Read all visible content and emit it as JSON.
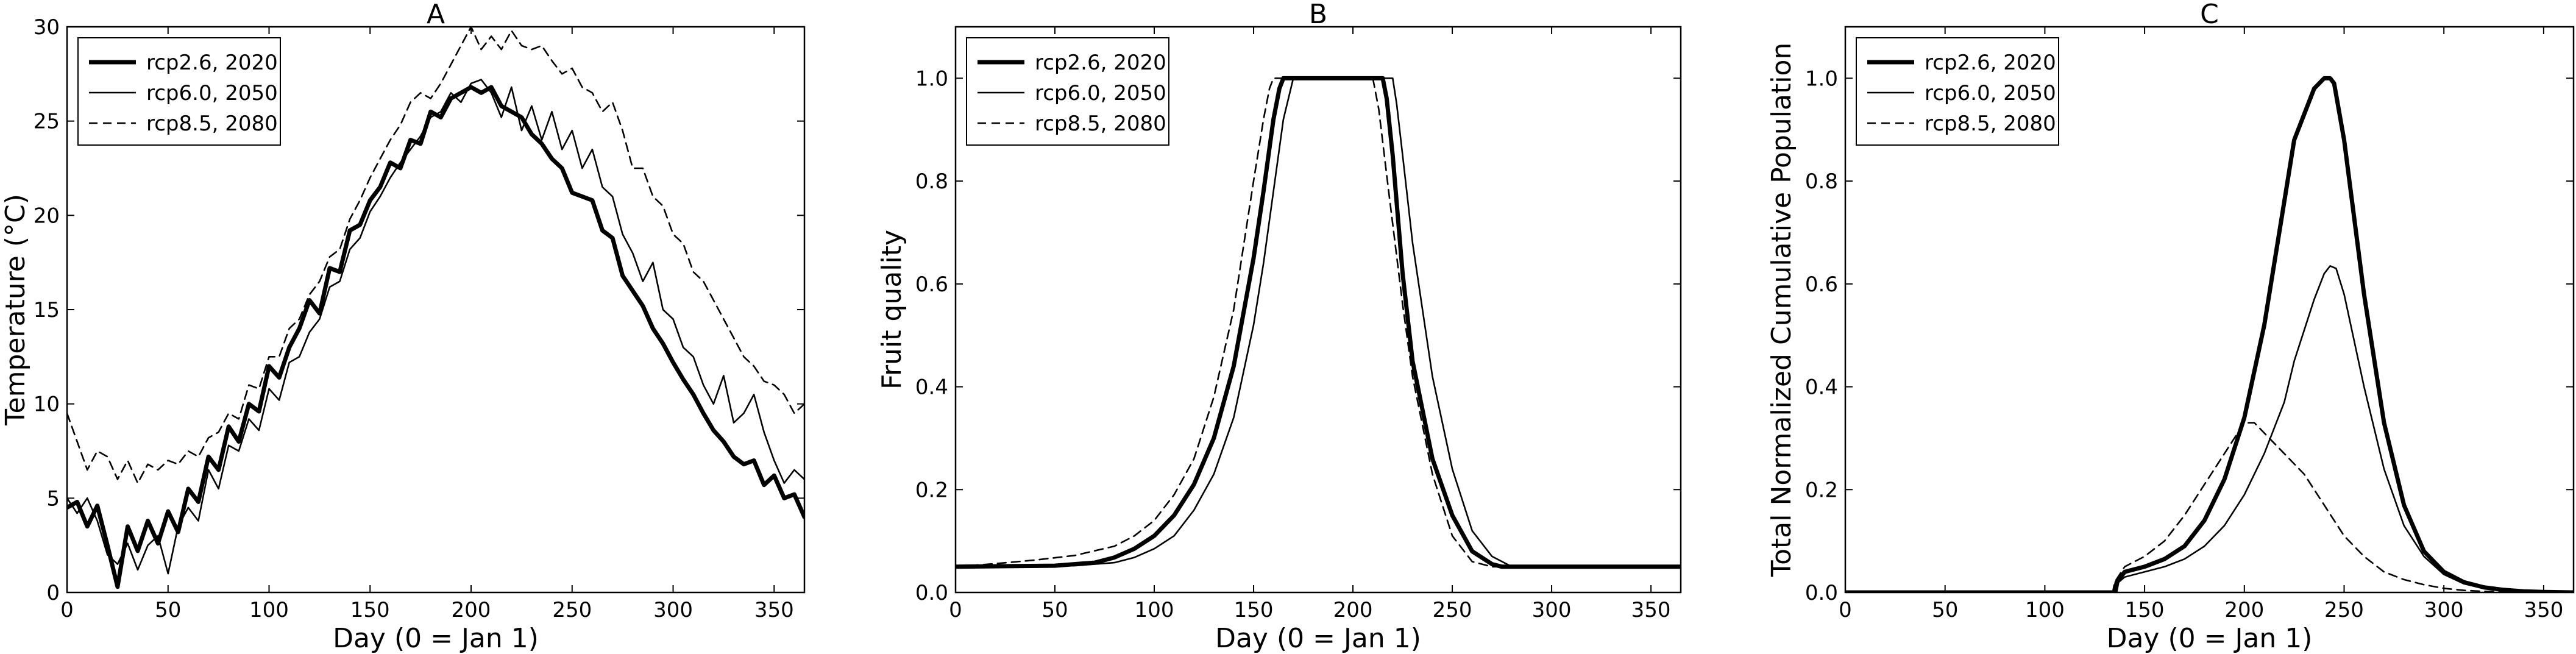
{
  "legend_entries": [
    "rcp2.6, 2020",
    "rcp6.0, 2050",
    "rcp8.5, 2080"
  ],
  "chart_data": [
    {
      "type": "line",
      "title": "A",
      "xlabel": "Day (0 = Jan 1)",
      "ylabel": "Temperature (°C)",
      "xlim": [
        0,
        365
      ],
      "ylim": [
        0,
        30
      ],
      "xticks": [
        0,
        50,
        100,
        150,
        200,
        250,
        300,
        350
      ],
      "yticks": [
        0,
        5,
        10,
        15,
        20,
        25,
        30
      ],
      "grid": false,
      "legend_position": "top-left",
      "series": [
        {
          "name": "rcp2.6, 2020",
          "style": "thick-solid",
          "x": [
            0,
            5,
            10,
            15,
            20,
            25,
            30,
            35,
            40,
            45,
            50,
            55,
            60,
            65,
            70,
            75,
            80,
            85,
            90,
            95,
            100,
            105,
            110,
            115,
            120,
            125,
            130,
            135,
            140,
            145,
            150,
            155,
            160,
            165,
            170,
            175,
            180,
            185,
            190,
            195,
            200,
            205,
            210,
            215,
            220,
            225,
            230,
            235,
            240,
            245,
            250,
            255,
            260,
            265,
            270,
            275,
            280,
            285,
            290,
            295,
            300,
            305,
            310,
            315,
            320,
            325,
            330,
            335,
            340,
            345,
            350,
            355,
            360,
            365
          ],
          "y": [
            4.5,
            4.8,
            3.5,
            4.6,
            2.5,
            0.3,
            3.5,
            2.2,
            3.8,
            2.6,
            4.3,
            3.2,
            5.5,
            4.8,
            7.2,
            6.5,
            8.8,
            8.0,
            10.0,
            9.6,
            12.0,
            11.4,
            13.0,
            14.0,
            15.5,
            14.8,
            17.2,
            17.0,
            19.2,
            19.5,
            20.8,
            21.5,
            22.8,
            22.5,
            24.0,
            23.8,
            25.5,
            25.2,
            26.2,
            26.5,
            26.8,
            26.5,
            26.8,
            25.8,
            25.5,
            25.2,
            24.3,
            23.8,
            23.0,
            22.5,
            21.2,
            21.0,
            20.8,
            19.2,
            18.8,
            16.8,
            16.0,
            15.2,
            14.0,
            13.2,
            12.2,
            11.3,
            10.5,
            9.5,
            8.6,
            8.0,
            7.2,
            6.8,
            7.0,
            5.7,
            6.2,
            5.0,
            5.2,
            4.0
          ]
        },
        {
          "name": "rcp6.0, 2050",
          "style": "thin-solid",
          "x": [
            0,
            5,
            10,
            15,
            20,
            25,
            30,
            35,
            40,
            45,
            50,
            55,
            60,
            65,
            70,
            75,
            80,
            85,
            90,
            95,
            100,
            105,
            110,
            115,
            120,
            125,
            130,
            135,
            140,
            145,
            150,
            155,
            160,
            165,
            170,
            175,
            180,
            185,
            190,
            195,
            200,
            205,
            210,
            215,
            220,
            225,
            230,
            235,
            240,
            245,
            250,
            255,
            260,
            265,
            270,
            275,
            280,
            285,
            290,
            295,
            300,
            305,
            310,
            315,
            320,
            325,
            330,
            335,
            340,
            345,
            350,
            355,
            360,
            365
          ],
          "y": [
            5.0,
            4.2,
            5.0,
            3.8,
            2.0,
            1.5,
            2.6,
            1.2,
            2.5,
            3.0,
            1.0,
            3.5,
            4.5,
            3.8,
            6.5,
            5.5,
            7.8,
            7.5,
            9.2,
            8.6,
            10.8,
            10.2,
            12.2,
            12.5,
            13.8,
            14.5,
            16.2,
            16.5,
            18.2,
            18.8,
            20.2,
            21.0,
            22.0,
            22.8,
            23.5,
            24.2,
            25.2,
            25.5,
            26.5,
            26.0,
            27.0,
            27.2,
            26.5,
            25.2,
            26.8,
            24.5,
            25.8,
            24.0,
            25.5,
            23.5,
            24.5,
            22.5,
            23.5,
            21.5,
            21.0,
            19.0,
            18.0,
            16.5,
            17.5,
            15.0,
            14.5,
            13.0,
            12.5,
            11.0,
            10.0,
            11.5,
            9.0,
            9.5,
            10.5,
            8.5,
            7.0,
            5.8,
            6.5,
            6.0
          ]
        },
        {
          "name": "rcp8.5, 2080",
          "style": "dashed",
          "x": [
            0,
            5,
            10,
            15,
            20,
            25,
            30,
            35,
            40,
            45,
            50,
            55,
            60,
            65,
            70,
            75,
            80,
            85,
            90,
            95,
            100,
            105,
            110,
            115,
            120,
            125,
            130,
            135,
            140,
            145,
            150,
            155,
            160,
            165,
            170,
            175,
            180,
            185,
            190,
            195,
            200,
            205,
            210,
            215,
            220,
            225,
            230,
            235,
            240,
            245,
            250,
            255,
            260,
            265,
            270,
            275,
            280,
            285,
            290,
            295,
            300,
            305,
            310,
            315,
            320,
            325,
            330,
            335,
            340,
            345,
            350,
            355,
            360,
            365
          ],
          "y": [
            9.5,
            8.0,
            6.5,
            7.5,
            7.2,
            6.0,
            7.0,
            5.8,
            6.8,
            6.5,
            7.0,
            6.8,
            7.5,
            7.2,
            8.2,
            8.5,
            9.5,
            9.2,
            11.0,
            10.8,
            12.5,
            12.5,
            14.0,
            14.5,
            15.8,
            16.5,
            17.8,
            18.2,
            19.8,
            20.8,
            22.0,
            23.0,
            24.0,
            24.8,
            26.0,
            26.5,
            26.2,
            27.0,
            28.0,
            29.0,
            30.0,
            28.8,
            29.5,
            28.8,
            29.8,
            29.0,
            28.8,
            29.0,
            28.2,
            27.5,
            27.8,
            26.8,
            26.5,
            25.5,
            26.0,
            24.5,
            22.5,
            22.5,
            21.0,
            20.5,
            19.0,
            18.5,
            17.0,
            16.5,
            15.5,
            14.5,
            13.5,
            12.5,
            12.0,
            11.2,
            11.0,
            10.5,
            9.5,
            10.0
          ]
        }
      ]
    },
    {
      "type": "line",
      "title": "B",
      "xlabel": "Day (0 = Jan 1)",
      "ylabel": "Fruit quality",
      "xlim": [
        0,
        365
      ],
      "ylim": [
        0,
        1.1
      ],
      "xticks": [
        0,
        50,
        100,
        150,
        200,
        250,
        300,
        350
      ],
      "yticks": [
        0.0,
        0.2,
        0.4,
        0.6,
        0.8,
        1.0
      ],
      "grid": false,
      "legend_position": "top-left",
      "series": [
        {
          "name": "rcp2.6, 2020",
          "style": "thick-solid",
          "x": [
            0,
            50,
            70,
            80,
            90,
            100,
            110,
            120,
            130,
            140,
            150,
            155,
            160,
            163,
            165,
            215,
            217,
            220,
            225,
            230,
            240,
            250,
            260,
            270,
            275,
            365
          ],
          "y": [
            0.05,
            0.052,
            0.058,
            0.068,
            0.085,
            0.11,
            0.15,
            0.21,
            0.3,
            0.44,
            0.65,
            0.78,
            0.92,
            0.98,
            1.0,
            1.0,
            0.96,
            0.85,
            0.62,
            0.45,
            0.26,
            0.15,
            0.08,
            0.055,
            0.05,
            0.05
          ]
        },
        {
          "name": "rcp6.0, 2050",
          "style": "thin-solid",
          "x": [
            0,
            60,
            80,
            90,
            100,
            110,
            120,
            130,
            140,
            150,
            155,
            160,
            165,
            170,
            220,
            222,
            225,
            230,
            240,
            250,
            260,
            270,
            280,
            365
          ],
          "y": [
            0.05,
            0.052,
            0.058,
            0.068,
            0.085,
            0.11,
            0.16,
            0.23,
            0.34,
            0.52,
            0.64,
            0.78,
            0.92,
            1.0,
            1.0,
            0.95,
            0.85,
            0.68,
            0.42,
            0.24,
            0.12,
            0.07,
            0.05,
            0.05
          ]
        },
        {
          "name": "rcp8.5, 2080",
          "style": "dashed",
          "x": [
            0,
            20,
            40,
            60,
            80,
            90,
            100,
            110,
            120,
            130,
            140,
            150,
            155,
            158,
            160,
            210,
            213,
            218,
            225,
            230,
            240,
            250,
            260,
            270,
            365
          ],
          "y": [
            0.05,
            0.056,
            0.063,
            0.072,
            0.09,
            0.11,
            0.14,
            0.19,
            0.26,
            0.38,
            0.55,
            0.8,
            0.92,
            0.98,
            1.0,
            1.0,
            0.94,
            0.78,
            0.56,
            0.42,
            0.23,
            0.11,
            0.06,
            0.05,
            0.05
          ]
        }
      ]
    },
    {
      "type": "line",
      "title": "C",
      "xlabel": "Day (0 = Jan 1)",
      "ylabel": "Total Normalized Cumulative Population",
      "xlim": [
        0,
        365
      ],
      "ylim": [
        0,
        1.1
      ],
      "xticks": [
        0,
        50,
        100,
        150,
        200,
        250,
        300,
        350
      ],
      "yticks": [
        0.0,
        0.2,
        0.4,
        0.6,
        0.8,
        1.0
      ],
      "grid": false,
      "legend_position": "top-left",
      "series": [
        {
          "name": "rcp2.6, 2020",
          "style": "thick-solid",
          "x": [
            0,
            135,
            136,
            140,
            150,
            160,
            170,
            180,
            190,
            200,
            210,
            220,
            225,
            230,
            235,
            240,
            243,
            245,
            250,
            260,
            270,
            280,
            290,
            300,
            310,
            320,
            330,
            340,
            350,
            365
          ],
          "y": [
            0,
            0,
            0.02,
            0.04,
            0.05,
            0.065,
            0.09,
            0.14,
            0.22,
            0.34,
            0.52,
            0.76,
            0.88,
            0.93,
            0.98,
            1.0,
            1.0,
            0.99,
            0.88,
            0.58,
            0.33,
            0.17,
            0.08,
            0.04,
            0.02,
            0.01,
            0.005,
            0.002,
            0.001,
            0
          ]
        },
        {
          "name": "rcp6.0, 2050",
          "style": "thin-solid",
          "x": [
            0,
            136,
            137,
            140,
            150,
            160,
            170,
            180,
            190,
            200,
            210,
            220,
            225,
            230,
            235,
            240,
            243,
            246,
            250,
            260,
            270,
            280,
            290,
            300,
            310,
            320,
            330,
            340,
            350,
            365
          ],
          "y": [
            0,
            0,
            0.02,
            0.03,
            0.04,
            0.05,
            0.065,
            0.09,
            0.13,
            0.19,
            0.27,
            0.37,
            0.45,
            0.51,
            0.57,
            0.62,
            0.635,
            0.63,
            0.58,
            0.4,
            0.24,
            0.13,
            0.07,
            0.035,
            0.017,
            0.008,
            0.004,
            0.002,
            0.001,
            0
          ]
        },
        {
          "name": "rcp8.5, 2080",
          "style": "dashed",
          "x": [
            0,
            134,
            135,
            140,
            150,
            160,
            170,
            180,
            190,
            195,
            200,
            205,
            210,
            215,
            220,
            225,
            230,
            240,
            250,
            260,
            270,
            280,
            290,
            300,
            310,
            320,
            330,
            340,
            365
          ],
          "y": [
            0,
            0,
            0.02,
            0.05,
            0.07,
            0.1,
            0.15,
            0.21,
            0.27,
            0.3,
            0.33,
            0.33,
            0.31,
            0.29,
            0.27,
            0.25,
            0.23,
            0.17,
            0.11,
            0.07,
            0.04,
            0.025,
            0.015,
            0.008,
            0.004,
            0.002,
            0.001,
            0.0005,
            0
          ]
        }
      ]
    }
  ]
}
